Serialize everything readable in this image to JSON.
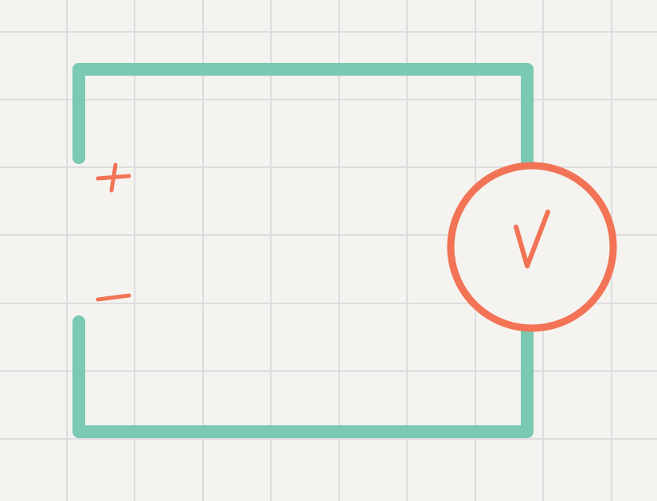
{
  "colors": {
    "paper": "#f4f3ef",
    "grid": "#dcdce0",
    "wire": "#79c9b3",
    "ink": "#f27355"
  },
  "circuit": {
    "source_terminals": {
      "positive_label": "+",
      "negative_label": "−"
    },
    "meter": {
      "label": "V"
    }
  }
}
